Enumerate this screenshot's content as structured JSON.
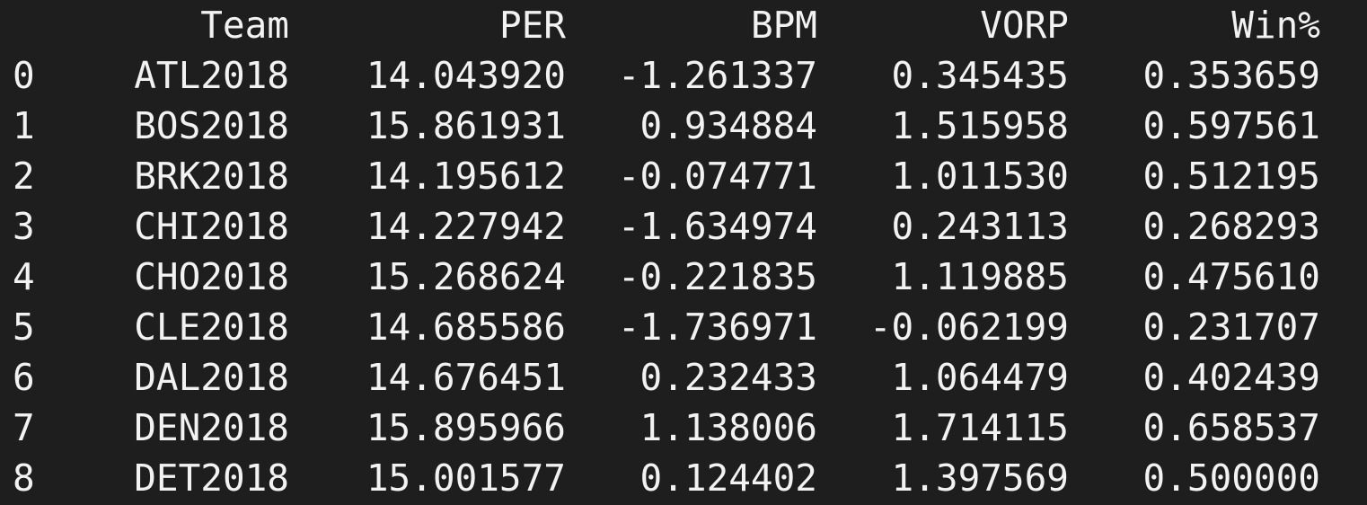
{
  "table": {
    "columns": [
      "Team",
      "PER",
      "BPM",
      "VORP",
      "Win%"
    ],
    "rows": [
      {
        "index": "0",
        "team": "ATL2018",
        "per": "14.043920",
        "bpm": "-1.261337",
        "vorp": "0.345435",
        "win": "0.353659"
      },
      {
        "index": "1",
        "team": "BOS2018",
        "per": "15.861931",
        "bpm": "0.934884",
        "vorp": "1.515958",
        "win": "0.597561"
      },
      {
        "index": "2",
        "team": "BRK2018",
        "per": "14.195612",
        "bpm": "-0.074771",
        "vorp": "1.011530",
        "win": "0.512195"
      },
      {
        "index": "3",
        "team": "CHI2018",
        "per": "14.227942",
        "bpm": "-1.634974",
        "vorp": "0.243113",
        "win": "0.268293"
      },
      {
        "index": "4",
        "team": "CHO2018",
        "per": "15.268624",
        "bpm": "-0.221835",
        "vorp": "1.119885",
        "win": "0.475610"
      },
      {
        "index": "5",
        "team": "CLE2018",
        "per": "14.685586",
        "bpm": "-1.736971",
        "vorp": "-0.062199",
        "win": "0.231707"
      },
      {
        "index": "6",
        "team": "DAL2018",
        "per": "14.676451",
        "bpm": "0.232433",
        "vorp": "1.064479",
        "win": "0.402439"
      },
      {
        "index": "7",
        "team": "DEN2018",
        "per": "15.895966",
        "bpm": "1.138006",
        "vorp": "1.714115",
        "win": "0.658537"
      },
      {
        "index": "8",
        "team": "DET2018",
        "per": "15.001577",
        "bpm": "0.124402",
        "vorp": "1.397569",
        "win": "0.500000"
      }
    ]
  },
  "colors": {
    "background": "#1e1e1e",
    "text": "#f2f2f2"
  }
}
